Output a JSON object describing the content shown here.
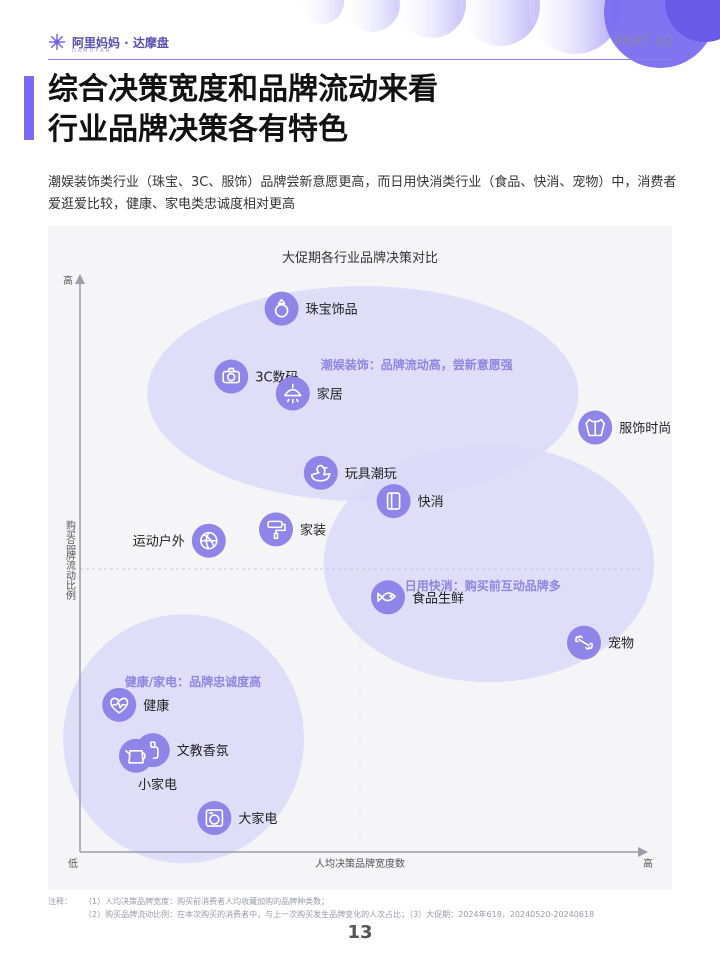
{
  "header": {
    "logo_text": "阿里妈妈 · 达摩盘",
    "logo_sub": "DAMOPAN",
    "part": "PART 02"
  },
  "title_lines": [
    "综合决策宽度和品牌流动来看",
    "行业品牌决策各有特色"
  ],
  "description": "潮娱装饰类行业（珠宝、3C、服饰）品牌尝新意愿更高，而日用快消类行业（食品、快消、宠物）中，消费者爱逛爱比较，健康、家电类忠诚度相对更高",
  "colors": {
    "accent": "#7a6cf0",
    "icon_fill": "#8f85e8",
    "cluster_fill": "#dcd8f8",
    "cluster_label": "#8f86e0"
  },
  "chart_data": {
    "type": "scatter",
    "title": "大促期各行业品牌决策对比",
    "xlabel": "人均决策品牌宽度数",
    "ylabel": "购买品牌流动比例",
    "x_low": "低",
    "x_high": "高",
    "y_high": "高",
    "xlim": [
      0,
      100
    ],
    "ylim": [
      0,
      100
    ],
    "grid": false,
    "divider_lines": {
      "x": 50,
      "y": 50
    },
    "clusters": [
      {
        "label": "潮娱装饰：品牌流动高，尝新意愿强",
        "cx": 50.5,
        "cy": 81,
        "rx": 38.5,
        "ry": 19,
        "label_x": 43,
        "label_y": 86
      },
      {
        "label": "日用快消：购买前互动品牌多",
        "cx": 73,
        "cy": 51,
        "rx": 29.5,
        "ry": 21,
        "label_x": 58,
        "label_y": 47
      },
      {
        "label": "健康/家电：品牌忠诚度高",
        "cx": 18.5,
        "cy": 20,
        "rx": 21.5,
        "ry": 22,
        "label_x": 8,
        "label_y": 30
      }
    ],
    "points": [
      {
        "name": "珠宝饰品",
        "x": 36,
        "y": 96,
        "icon": "ring-icon",
        "label_side": "right"
      },
      {
        "name": "3C数码",
        "x": 27,
        "y": 84,
        "icon": "camera-icon",
        "label_side": "right"
      },
      {
        "name": "家居",
        "x": 38,
        "y": 81,
        "icon": "lamp-icon",
        "label_side": "right"
      },
      {
        "name": "服饰时尚",
        "x": 92,
        "y": 75,
        "icon": "shirt-icon",
        "label_side": "right"
      },
      {
        "name": "玩具潮玩",
        "x": 43,
        "y": 67,
        "icon": "duck-icon",
        "label_side": "right"
      },
      {
        "name": "快消",
        "x": 56,
        "y": 62,
        "icon": "tissue-icon",
        "label_side": "right"
      },
      {
        "name": "家装",
        "x": 35,
        "y": 57,
        "icon": "roller-icon",
        "label_side": "right"
      },
      {
        "name": "运动户外",
        "x": 23,
        "y": 55,
        "icon": "ball-icon",
        "label_side": "left"
      },
      {
        "name": "食品生鲜",
        "x": 55,
        "y": 45,
        "icon": "fish-icon",
        "label_side": "right"
      },
      {
        "name": "宠物",
        "x": 90,
        "y": 37,
        "icon": "bone-icon",
        "label_side": "right"
      },
      {
        "name": "健康",
        "x": 7,
        "y": 26,
        "icon": "heart-icon",
        "label_side": "right"
      },
      {
        "name": "文教香氛",
        "x": 13,
        "y": 18,
        "icon": "perfume-icon",
        "label_side": "right"
      },
      {
        "name": "小家电",
        "x": 10,
        "y": 17,
        "icon": "kettle-icon",
        "label_side": "below"
      },
      {
        "name": "大家电",
        "x": 24,
        "y": 6,
        "icon": "washer-icon",
        "label_side": "right"
      }
    ]
  },
  "notes": {
    "label": "注释：",
    "line1": "（1）人均决策品牌宽度：购买前消费者人均收藏加购的品牌种类数；",
    "line2": "（2）购买品牌流动比例：在本次购买的消费者中，与上一次购买发生品牌变化的人次占比；（3）大促期：2024年618，20240520-20240618"
  },
  "page_number": "13"
}
